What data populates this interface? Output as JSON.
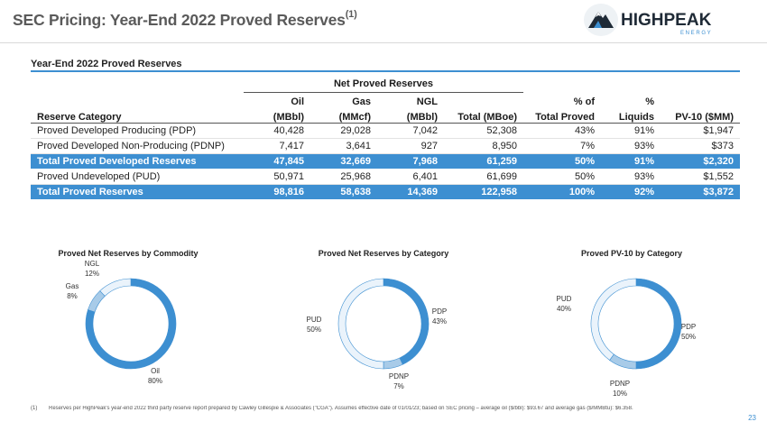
{
  "header": {
    "title": "SEC Pricing: Year-End 2022 Proved Reserves",
    "title_superscript": "(1)",
    "logo_text": "HIGHPEAK",
    "logo_subtext": "E N E R G Y"
  },
  "section_title": "Year-End 2022 Proved Reserves",
  "table": {
    "group_header": "Net Proved Reserves",
    "columns_line1": [
      "",
      "Oil",
      "Gas",
      "NGL",
      "",
      "% of",
      "%",
      ""
    ],
    "columns_line2": [
      "Reserve Category",
      "(MBbl)",
      "(MMcf)",
      "(MBbl)",
      "Total (MBoe)",
      "Total Proved",
      "Liquids",
      "PV-10 ($MM)"
    ],
    "rows": [
      {
        "cells": [
          "Proved Developed Producing (PDP)",
          "40,428",
          "29,028",
          "7,042",
          "52,308",
          "43%",
          "91%",
          "$1,947"
        ],
        "total": false
      },
      {
        "cells": [
          "Proved Developed Non-Producing (PDNP)",
          "7,417",
          "3,641",
          "927",
          "8,950",
          "7%",
          "93%",
          "$373"
        ],
        "total": false
      },
      {
        "cells": [
          "Total Proved Developed Reserves",
          "47,845",
          "32,669",
          "7,968",
          "61,259",
          "50%",
          "91%",
          "$2,320"
        ],
        "total": true
      },
      {
        "cells": [
          "Proved Undeveloped (PUD)",
          "50,971",
          "25,968",
          "6,401",
          "61,699",
          "50%",
          "93%",
          "$1,552"
        ],
        "total": false
      },
      {
        "cells": [
          "Total Proved Reserves",
          "98,816",
          "58,638",
          "14,369",
          "122,958",
          "100%",
          "92%",
          "$3,872"
        ],
        "total": true
      }
    ]
  },
  "chart_data": [
    {
      "type": "pie",
      "title": "Proved Net Reserves by Commodity",
      "categories": [
        "Oil",
        "Gas",
        "NGL"
      ],
      "values": [
        80,
        8,
        12
      ],
      "value_labels": [
        "80%",
        "8%",
        "12%"
      ],
      "colors": [
        "#3d8fd1",
        "#a8cbe8",
        "#eaf3fb"
      ]
    },
    {
      "type": "pie",
      "title": "Proved Net Reserves by Category",
      "categories": [
        "PDP",
        "PDNP",
        "PUD"
      ],
      "values": [
        43,
        7,
        50
      ],
      "value_labels": [
        "43%",
        "7%",
        "50%"
      ],
      "colors": [
        "#3d8fd1",
        "#a8cbe8",
        "#eaf3fb"
      ]
    },
    {
      "type": "pie",
      "title": "Proved PV-10 by Category",
      "categories": [
        "PDP",
        "PDNP",
        "PUD"
      ],
      "values": [
        50,
        10,
        40
      ],
      "value_labels": [
        "50%",
        "10%",
        "40%"
      ],
      "colors": [
        "#3d8fd1",
        "#a8cbe8",
        "#eaf3fb"
      ]
    }
  ],
  "footnote": {
    "number": "(1)",
    "text": "Reserves per HighPeak's year-end 2022 third party reserve report prepared by Cawley Gillespie & Associates (\"CGA\"). Assumes effective date of 01/01/23; based on SEC pricing – average oil ($/bbl): $93.67 and average gas ($/MMBtu): $6.358."
  },
  "page_number": "23"
}
